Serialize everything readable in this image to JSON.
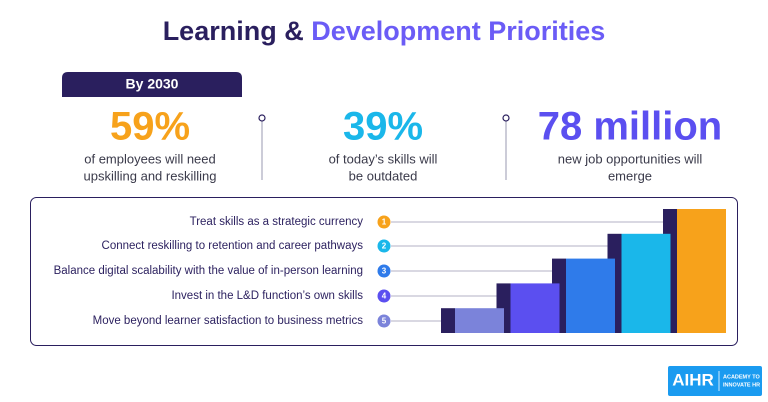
{
  "header": {
    "title_part1": "Learning &",
    "title_part2": "Development Priorities",
    "badge": "By 2030"
  },
  "stats": [
    {
      "value": "59%",
      "lines": [
        "of employees will need",
        "upskilling and reskilling"
      ]
    },
    {
      "value": "39%",
      "lines": [
        "of today’s skills will",
        "be outdated"
      ]
    },
    {
      "value": "78 million",
      "lines": [
        "new job opportunities will",
        "emerge"
      ]
    }
  ],
  "priorities": [
    {
      "number": "1",
      "label": "Treat skills as a strategic currency"
    },
    {
      "number": "2",
      "label": "Connect reskilling to retention and career pathways"
    },
    {
      "number": "3",
      "label": "Balance digital scalability with the value of in-person learning"
    },
    {
      "number": "4",
      "label": "Invest in the L&D function’s own skills"
    },
    {
      "number": "5",
      "label": "Move beyond learner satisfaction to business metrics"
    }
  ],
  "logo": {
    "name": "AIHR",
    "tagline": [
      "ACADEMY TO",
      "INNOVATE HR"
    ]
  }
}
